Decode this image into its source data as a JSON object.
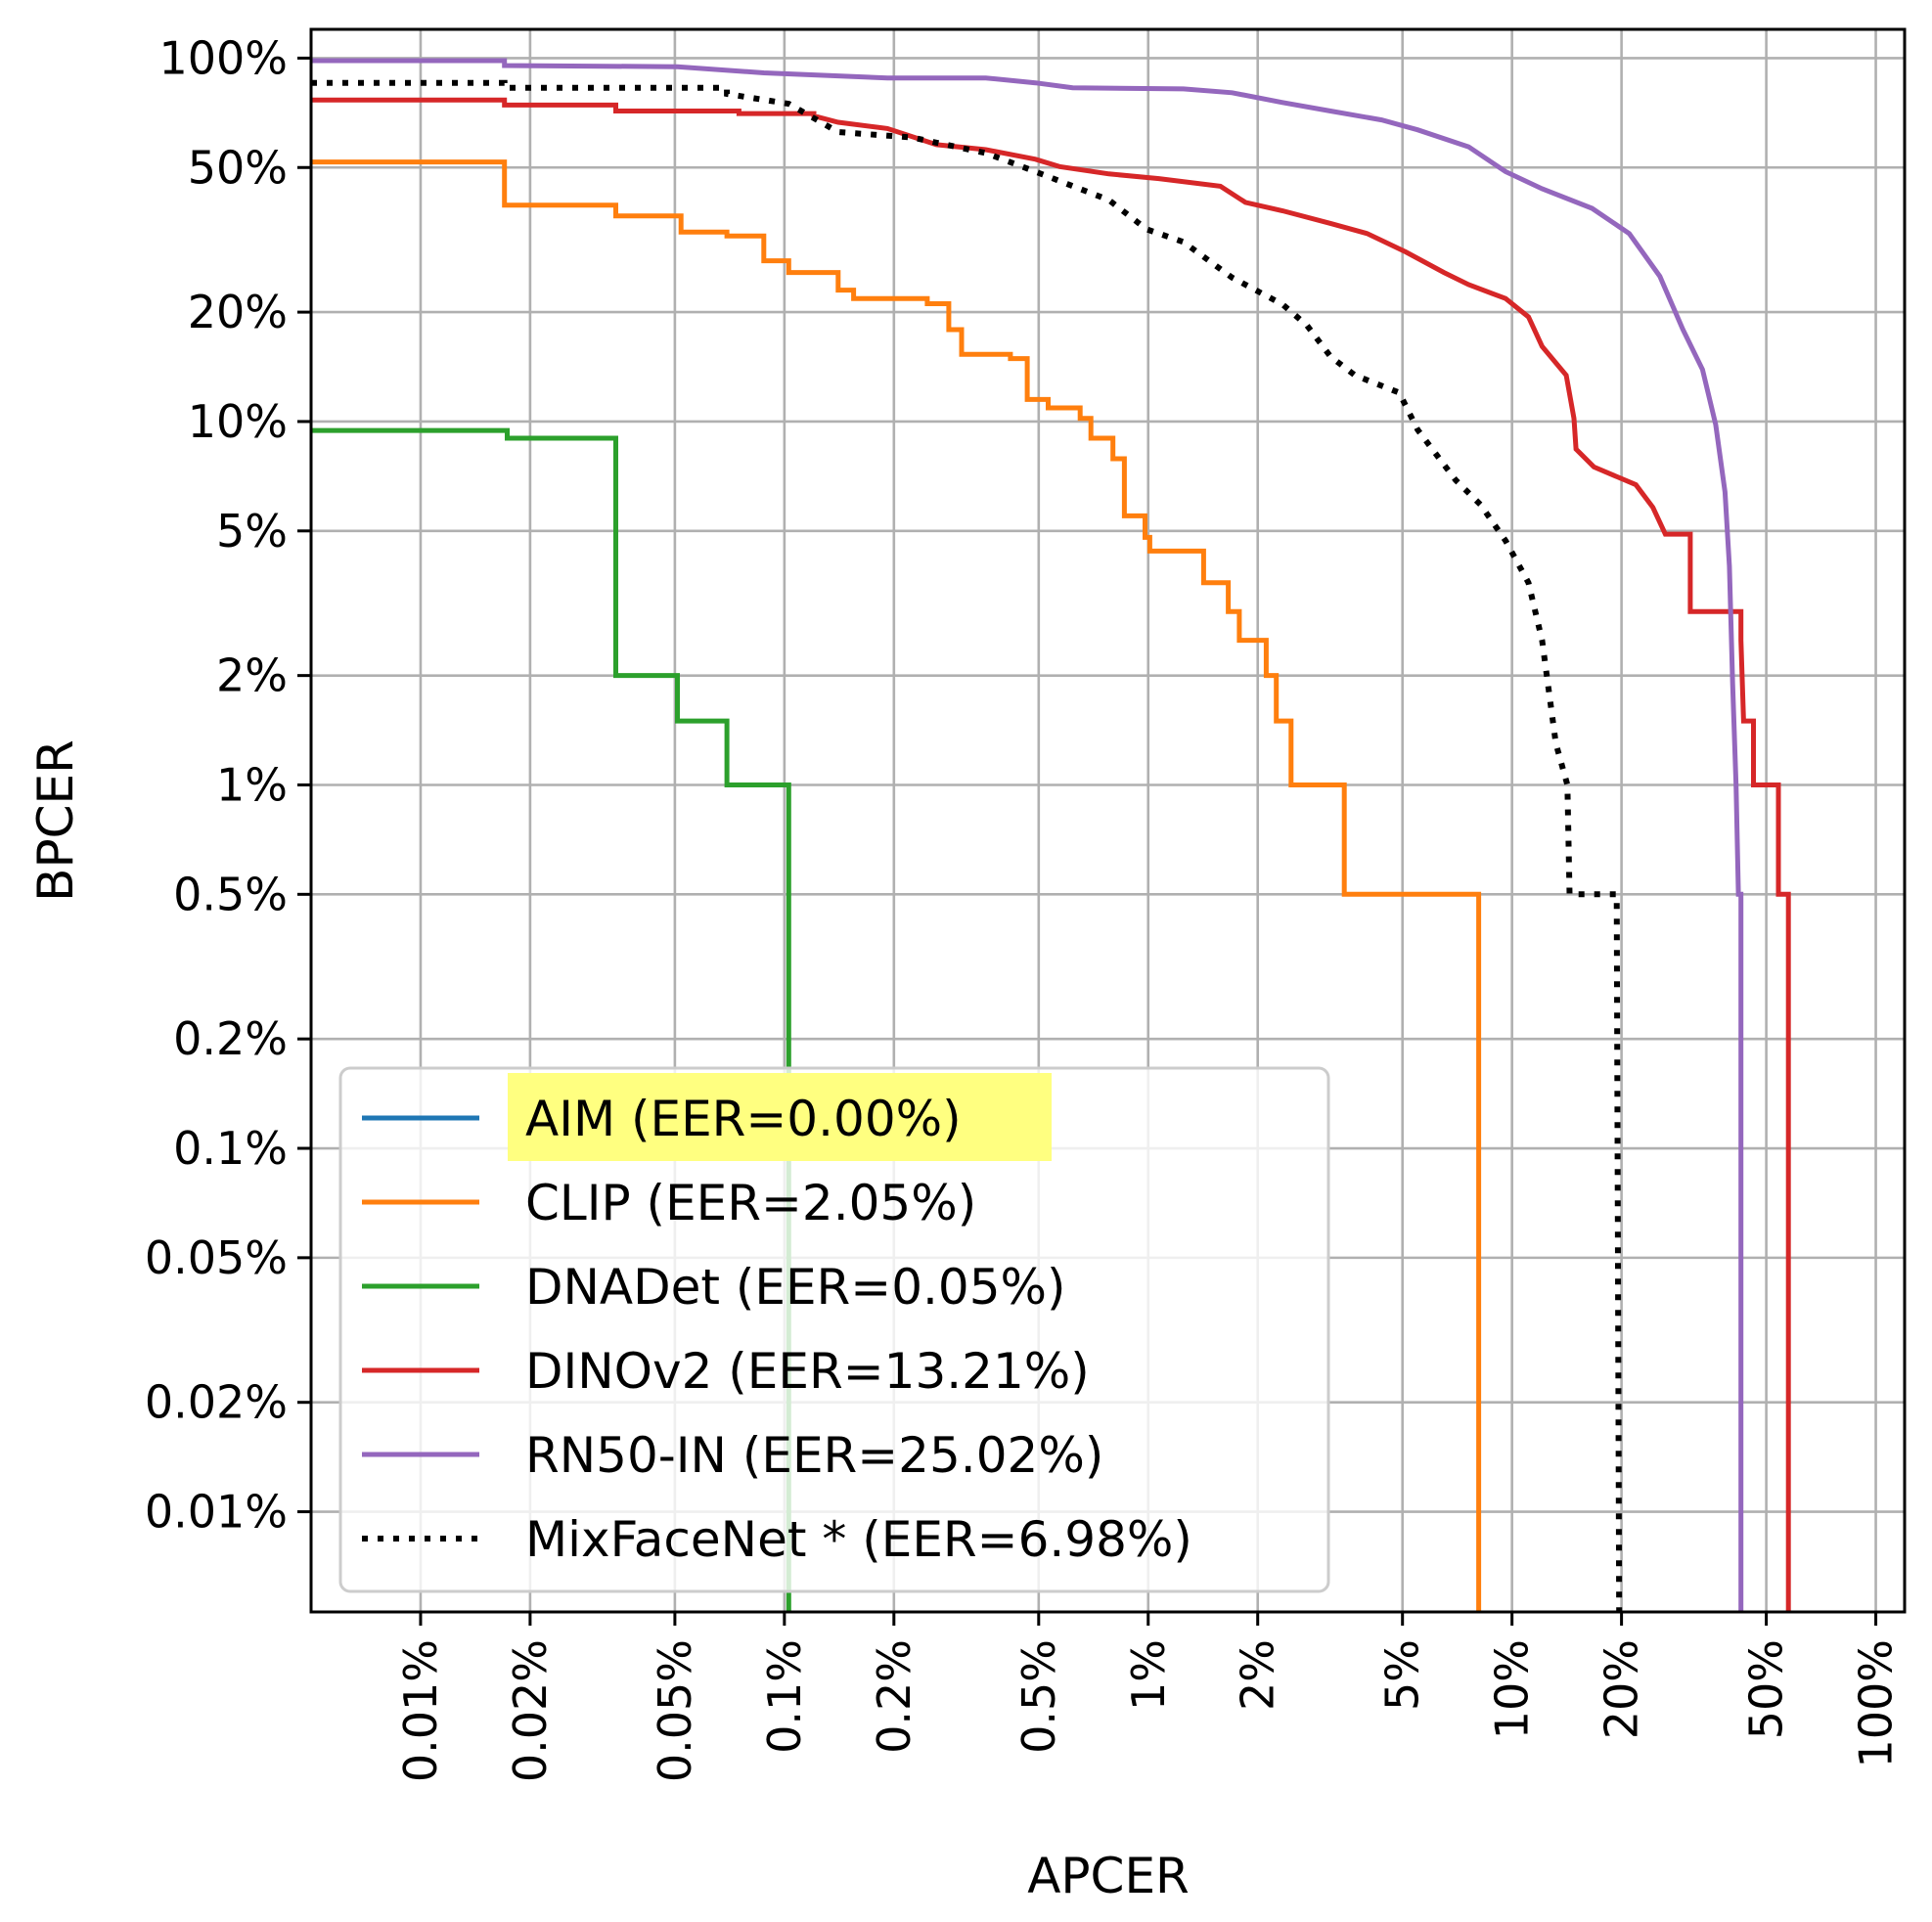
{
  "chart_data": {
    "type": "line",
    "title": "",
    "xlabel": "APCER",
    "ylabel": "BPCER",
    "xscale": "log",
    "yscale": "log",
    "xlim": [
      0.005,
      120
    ],
    "ylim": [
      0.0053,
      120
    ],
    "grid": true,
    "legend_position": "lower-left",
    "x_ticks": [
      {
        "value": 0.01,
        "label": "0.01%"
      },
      {
        "value": 0.02,
        "label": "0.02%"
      },
      {
        "value": 0.05,
        "label": "0.05%"
      },
      {
        "value": 0.1,
        "label": "0.1%"
      },
      {
        "value": 0.2,
        "label": "0.2%"
      },
      {
        "value": 0.5,
        "label": "0.5%"
      },
      {
        "value": 1,
        "label": "1%"
      },
      {
        "value": 2,
        "label": "2%"
      },
      {
        "value": 5,
        "label": "5%"
      },
      {
        "value": 10,
        "label": "10%"
      },
      {
        "value": 20,
        "label": "20%"
      },
      {
        "value": 50,
        "label": "50%"
      },
      {
        "value": 100,
        "label": "100%"
      }
    ],
    "y_ticks": [
      {
        "value": 100,
        "label": "100%"
      },
      {
        "value": 50,
        "label": "50%"
      },
      {
        "value": 20,
        "label": "20%"
      },
      {
        "value": 10,
        "label": "10%"
      },
      {
        "value": 5,
        "label": "5%"
      },
      {
        "value": 2,
        "label": "2%"
      },
      {
        "value": 1,
        "label": "1%"
      },
      {
        "value": 0.5,
        "label": "0.5%"
      },
      {
        "value": 0.2,
        "label": "0.2%"
      },
      {
        "value": 0.1,
        "label": "0.1%"
      },
      {
        "value": 0.05,
        "label": "0.05%"
      },
      {
        "value": 0.02,
        "label": "0.02%"
      },
      {
        "value": 0.01,
        "label": "0.01%"
      }
    ],
    "series": [
      {
        "name": "AIM",
        "label": "AIM (EER=0.00%)",
        "eer": 0.0,
        "color": "#1f77b4",
        "style": "solid",
        "highlight": "#ffff80",
        "points": []
      },
      {
        "name": "CLIP",
        "label": "CLIP (EER=2.05%)",
        "eer": 2.05,
        "color": "#ff7f0e",
        "style": "solid",
        "points": [
          [
            0.005,
            51.8
          ],
          [
            0.017,
            51.8
          ],
          [
            0.017,
            39.4
          ],
          [
            0.0344,
            39.4
          ],
          [
            0.0344,
            36.8
          ],
          [
            0.052,
            36.8
          ],
          [
            0.052,
            33.2
          ],
          [
            0.0695,
            33.2
          ],
          [
            0.0695,
            32.4
          ],
          [
            0.0878,
            32.4
          ],
          [
            0.0878,
            27.7
          ],
          [
            0.1028,
            27.7
          ],
          [
            0.1028,
            25.7
          ],
          [
            0.1405,
            25.7
          ],
          [
            0.1405,
            23.0
          ],
          [
            0.155,
            23.0
          ],
          [
            0.155,
            21.8
          ],
          [
            0.247,
            21.8
          ],
          [
            0.247,
            21.1
          ],
          [
            0.283,
            21.1
          ],
          [
            0.283,
            17.9
          ],
          [
            0.307,
            17.9
          ],
          [
            0.307,
            15.3
          ],
          [
            0.418,
            15.3
          ],
          [
            0.418,
            14.9
          ],
          [
            0.465,
            14.9
          ],
          [
            0.465,
            11.5
          ],
          [
            0.531,
            11.5
          ],
          [
            0.531,
            10.9
          ],
          [
            0.65,
            10.9
          ],
          [
            0.65,
            10.2
          ],
          [
            0.696,
            10.2
          ],
          [
            0.696,
            9.0
          ],
          [
            0.8,
            9.0
          ],
          [
            0.8,
            7.9
          ],
          [
            0.86,
            7.9
          ],
          [
            0.86,
            5.5
          ],
          [
            0.98,
            5.5
          ],
          [
            0.98,
            4.8
          ],
          [
            1.01,
            4.8
          ],
          [
            1.01,
            4.4
          ],
          [
            1.42,
            4.4
          ],
          [
            1.42,
            3.6
          ],
          [
            1.66,
            3.6
          ],
          [
            1.66,
            3.0
          ],
          [
            1.78,
            3.0
          ],
          [
            1.78,
            2.5
          ],
          [
            2.11,
            2.5
          ],
          [
            2.11,
            2.0
          ],
          [
            2.25,
            2.0
          ],
          [
            2.25,
            1.5
          ],
          [
            2.47,
            1.5
          ],
          [
            2.47,
            1.0
          ],
          [
            3.46,
            1.0
          ],
          [
            3.46,
            0.5
          ],
          [
            8.1,
            0.5
          ],
          [
            8.1,
            0.0053
          ]
        ]
      },
      {
        "name": "DNADet",
        "label": "DNADet (EER=0.05%)",
        "eer": 0.05,
        "color": "#2ca02c",
        "style": "solid",
        "points": [
          [
            0.005,
            9.45
          ],
          [
            0.0173,
            9.45
          ],
          [
            0.0173,
            9.0
          ],
          [
            0.0344,
            9.0
          ],
          [
            0.0344,
            2.0
          ],
          [
            0.0508,
            2.0
          ],
          [
            0.0508,
            1.5
          ],
          [
            0.0695,
            1.5
          ],
          [
            0.0695,
            1.0
          ],
          [
            0.1028,
            1.0
          ],
          [
            0.1028,
            0.0053
          ]
        ]
      },
      {
        "name": "DINOv2",
        "label": "DINOv2 (EER=13.21%)",
        "eer": 13.21,
        "color": "#d62728",
        "style": "solid",
        "points": [
          [
            0.005,
            76.7
          ],
          [
            0.017,
            76.7
          ],
          [
            0.017,
            74.3
          ],
          [
            0.0344,
            74.3
          ],
          [
            0.0344,
            71.5
          ],
          [
            0.075,
            71.5
          ],
          [
            0.075,
            70.4
          ],
          [
            0.1205,
            70.4
          ],
          [
            0.1205,
            69.3
          ],
          [
            0.1405,
            66.6
          ],
          [
            0.192,
            64.0
          ],
          [
            0.262,
            57.8
          ],
          [
            0.358,
            56.0
          ],
          [
            0.49,
            52.7
          ],
          [
            0.57,
            50.3
          ],
          [
            0.78,
            48.0
          ],
          [
            1.07,
            46.6
          ],
          [
            1.58,
            44.4
          ],
          [
            1.85,
            40.1
          ],
          [
            2.34,
            38.0
          ],
          [
            3.17,
            35.1
          ],
          [
            4.0,
            32.9
          ],
          [
            5.1,
            29.3
          ],
          [
            6.5,
            25.7
          ],
          [
            7.6,
            23.8
          ],
          [
            9.6,
            21.8
          ],
          [
            11.1,
            19.4
          ],
          [
            12.1,
            16.1
          ],
          [
            14.1,
            13.4
          ],
          [
            14.8,
            10.2
          ],
          [
            15.0,
            8.4
          ],
          [
            16.8,
            7.5
          ],
          [
            21.9,
            6.7
          ],
          [
            24.4,
            5.8
          ],
          [
            26.4,
            4.9
          ],
          [
            30.9,
            4.9
          ],
          [
            30.9,
            3.0
          ],
          [
            42.6,
            3.0
          ],
          [
            42.6,
            2.5
          ],
          [
            43.3,
            1.5
          ],
          [
            46.1,
            1.5
          ],
          [
            46.1,
            1.0
          ],
          [
            54.0,
            1.0
          ],
          [
            54.0,
            0.5
          ],
          [
            57.5,
            0.5
          ],
          [
            57.5,
            0.0053
          ]
        ]
      },
      {
        "name": "RN50-IN",
        "label": "RN50-IN (EER=25.02%)",
        "eer": 25.02,
        "color": "#9467bd",
        "style": "solid",
        "points": [
          [
            0.005,
            98.4
          ],
          [
            0.017,
            98.4
          ],
          [
            0.017,
            95.4
          ],
          [
            0.0508,
            94.7
          ],
          [
            0.0878,
            91.1
          ],
          [
            0.192,
            88.2
          ],
          [
            0.358,
            88.2
          ],
          [
            0.49,
            85.5
          ],
          [
            0.62,
            82.9
          ],
          [
            1.25,
            82.3
          ],
          [
            1.7,
            80.3
          ],
          [
            2.34,
            75.5
          ],
          [
            3.17,
            71.5
          ],
          [
            4.38,
            67.6
          ],
          [
            5.5,
            63.5
          ],
          [
            7.6,
            57.0
          ],
          [
            9.6,
            48.7
          ],
          [
            12.1,
            43.7
          ],
          [
            16.6,
            38.6
          ],
          [
            21.0,
            32.9
          ],
          [
            25.5,
            25.1
          ],
          [
            29.5,
            17.9
          ],
          [
            33.4,
            13.9
          ],
          [
            36.3,
            9.8
          ],
          [
            38.5,
            6.4
          ],
          [
            39.6,
            4.0
          ],
          [
            40.4,
            1.9
          ],
          [
            41.3,
            1.0
          ],
          [
            41.9,
            0.5
          ],
          [
            42.6,
            0.5
          ],
          [
            42.6,
            0.0053
          ]
        ]
      },
      {
        "name": "MixFaceNet *",
        "label": "MixFaceNet * (EER=6.98%)",
        "eer": 6.98,
        "color": "#000000",
        "style": "dotted",
        "points": [
          [
            0.005,
            85.5
          ],
          [
            0.017,
            85.5
          ],
          [
            0.017,
            82.9
          ],
          [
            0.0695,
            82.9
          ],
          [
            0.0695,
            79.7
          ],
          [
            0.1028,
            74.9
          ],
          [
            0.1405,
            62.6
          ],
          [
            0.224,
            60.5
          ],
          [
            0.358,
            54.8
          ],
          [
            0.49,
            48.7
          ],
          [
            0.78,
            40.7
          ],
          [
            0.99,
            33.8
          ],
          [
            1.25,
            31.2
          ],
          [
            1.7,
            24.9
          ],
          [
            2.34,
            21.0
          ],
          [
            2.73,
            18.4
          ],
          [
            3.17,
            15.1
          ],
          [
            3.7,
            13.4
          ],
          [
            4.9,
            12.0
          ],
          [
            5.5,
            9.5
          ],
          [
            7.0,
            6.9
          ],
          [
            8.2,
            5.9
          ],
          [
            9.6,
            4.7
          ],
          [
            11.1,
            3.6
          ],
          [
            12.1,
            2.5
          ],
          [
            13.2,
            1.3
          ],
          [
            14.2,
            1.0
          ],
          [
            14.4,
            0.5
          ],
          [
            19.4,
            0.5
          ],
          [
            19.7,
            0.0053
          ]
        ]
      }
    ]
  }
}
